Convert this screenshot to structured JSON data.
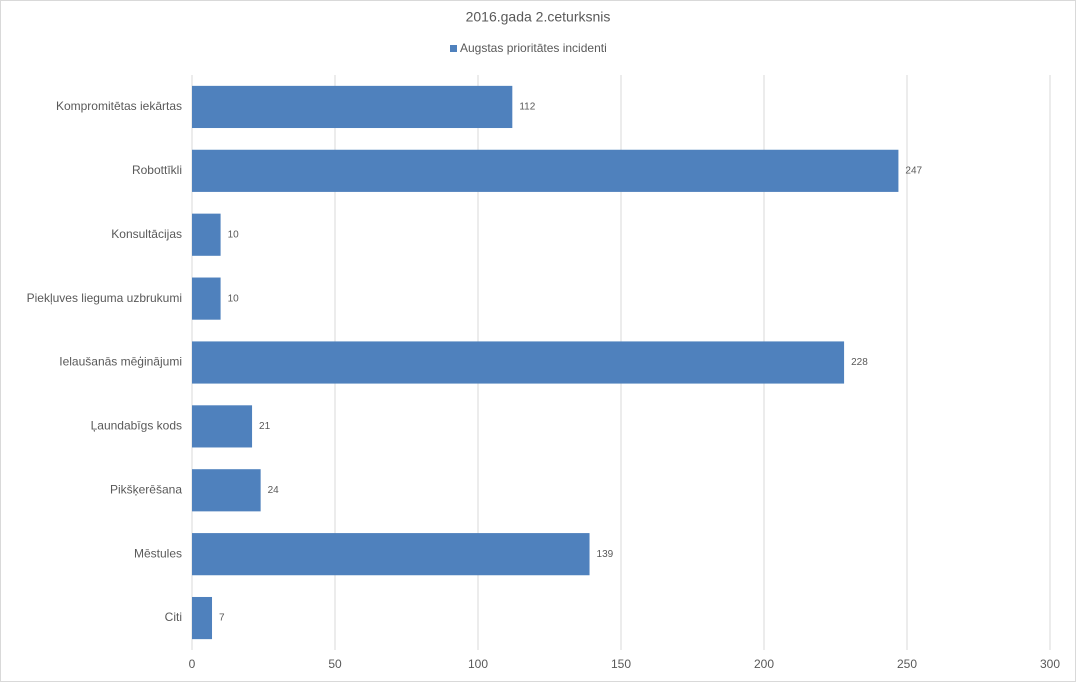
{
  "chart_data": {
    "type": "bar",
    "orientation": "horizontal",
    "title": "2016.gada 2.ceturksnis",
    "categories": [
      "Kompromitētas iekārtas",
      "Robottīkli",
      "Konsultācijas",
      "Piekļuves lieguma uzbrukumi",
      "Ielaušanās mēģinājumi",
      "Ļaundabīgs kods",
      "Pikšķerēšana",
      "Mēstules",
      "Citi"
    ],
    "series": [
      {
        "name": "Augstas prioritātes incidenti",
        "color": "#4f81bd",
        "values": [
          112,
          247,
          10,
          10,
          228,
          21,
          24,
          139,
          7
        ]
      }
    ],
    "xlim": [
      0,
      300
    ],
    "xticks": [
      0,
      50,
      100,
      150,
      200,
      250,
      300
    ],
    "grid": true,
    "legend": "top"
  }
}
